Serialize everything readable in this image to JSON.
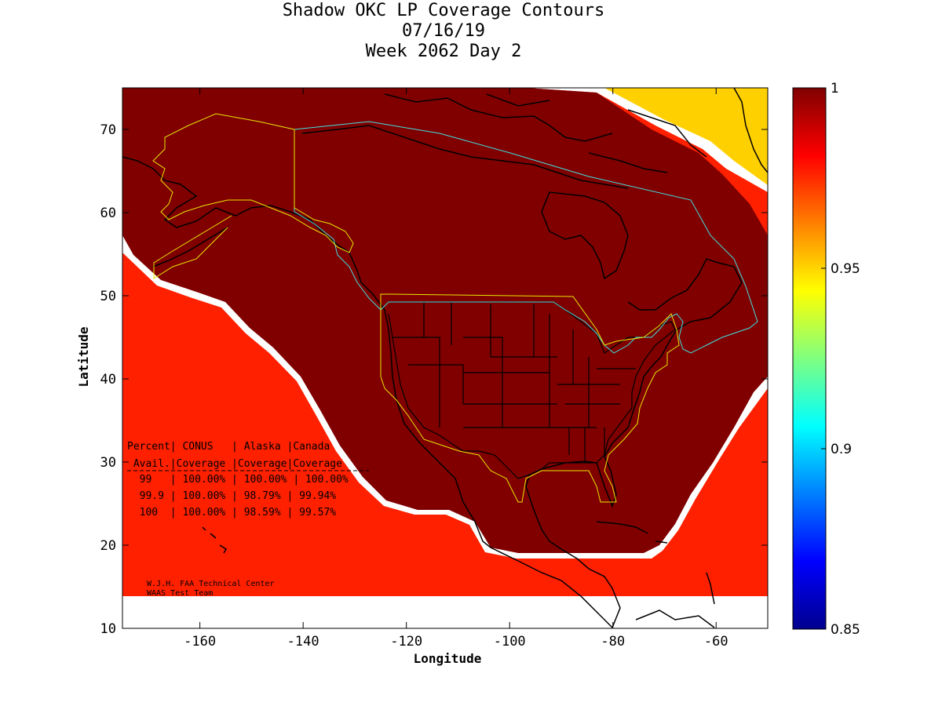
{
  "title": {
    "line1": "Shadow OKC LP Coverage Contours",
    "line2": "07/16/19",
    "line3": "Week 2062 Day 2"
  },
  "axes": {
    "xlabel": "Longitude",
    "ylabel": "Latitude",
    "xlim": [
      -175,
      -50
    ],
    "ylim": [
      10,
      75
    ],
    "xticks": [
      -160,
      -140,
      -120,
      -100,
      -80,
      -60
    ],
    "yticks": [
      10,
      20,
      30,
      40,
      50,
      60,
      70
    ]
  },
  "colorbar": {
    "range": [
      0.85,
      1
    ],
    "ticks": [
      "1",
      "0.95",
      "0.9",
      "0.85"
    ],
    "colormap": "jet"
  },
  "colors": {
    "coverage_full": "#800000",
    "service_area_outline": "#e8e800",
    "canada_outline": "#40e0e0",
    "coastline": "#000000"
  },
  "table": {
    "header1": "Percent| CONUS   | Alaska |Canada",
    "header2": " Avail.|Coverage |Coverage|Coverage",
    "rows": [
      "  99   | 100.00% | 100.00% | 100.00%",
      "  99.9 | 100.00% | 98.79% | 99.94%",
      "  100  | 100.00% | 98.59% | 99.57%"
    ]
  },
  "credits": {
    "line1": "W.J.H. FAA Technical Center",
    "line2": "WAAS Test Team"
  }
}
